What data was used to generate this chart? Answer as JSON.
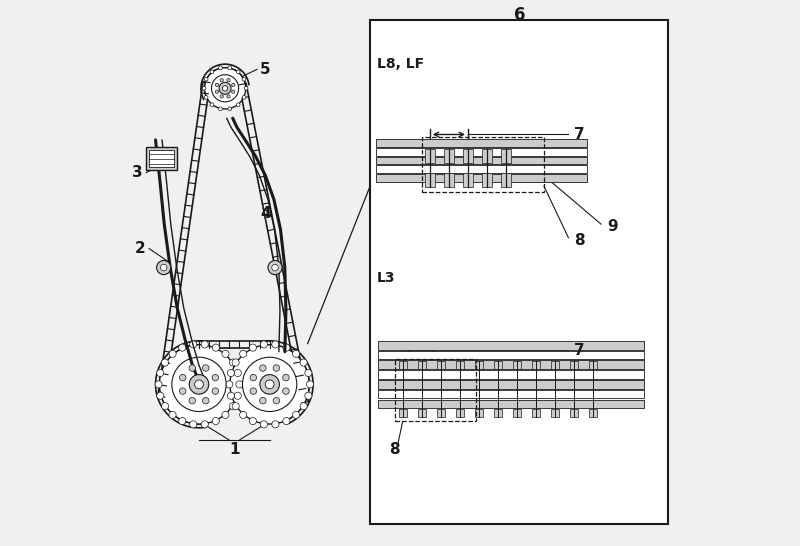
{
  "bg_color": "#f0f0f0",
  "line_color": "#1a1a1a",
  "white": "#ffffff",
  "light_gray": "#cccccc",
  "mid_gray": "#888888",
  "title_num_6": "6",
  "label_L8LF": "L8, LF",
  "label_L3": "L3",
  "label_1": "1",
  "label_2": "2",
  "label_3": "3",
  "label_4": "4",
  "label_5": "5",
  "label_7": "7",
  "label_8": "8",
  "label_9": "9",
  "label_fontsize": 11,
  "title_fontsize": 12
}
